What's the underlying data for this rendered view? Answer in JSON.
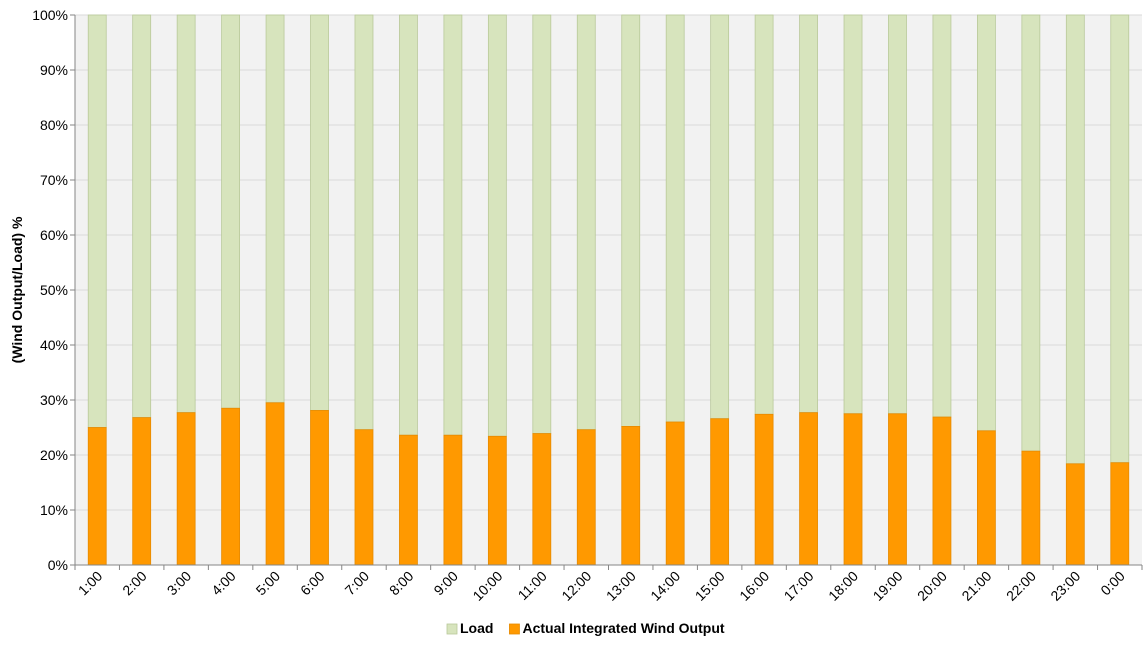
{
  "chart_data": {
    "type": "bar",
    "stacked": true,
    "normalized": true,
    "title": "",
    "xlabel": "",
    "ylabel": "(Wind Output/Load) %",
    "ylim": [
      0,
      100
    ],
    "yticks": [
      "0%",
      "10%",
      "20%",
      "30%",
      "40%",
      "50%",
      "60%",
      "70%",
      "80%",
      "90%",
      "100%"
    ],
    "grid": true,
    "legend_position": "bottom",
    "categories": [
      "1:00",
      "2:00",
      "3:00",
      "4:00",
      "5:00",
      "6:00",
      "7:00",
      "8:00",
      "9:00",
      "10:00",
      "11:00",
      "12:00",
      "13:00",
      "14:00",
      "15:00",
      "16:00",
      "17:00",
      "18:00",
      "19:00",
      "20:00",
      "21:00",
      "22:00",
      "23:00",
      "0:00"
    ],
    "series": [
      {
        "name": "Actual Integrated Wind Output",
        "color": "#ff9900",
        "values": [
          25.0,
          26.8,
          27.7,
          28.5,
          29.5,
          28.1,
          24.6,
          23.6,
          23.6,
          23.4,
          23.9,
          24.6,
          25.2,
          26.0,
          26.6,
          27.4,
          27.7,
          27.5,
          27.5,
          26.9,
          24.4,
          20.7,
          18.4,
          18.6
        ]
      },
      {
        "name": "Load",
        "color": "#d7e4bd",
        "values": [
          75.0,
          73.2,
          72.3,
          71.5,
          70.5,
          71.9,
          75.4,
          76.4,
          76.4,
          76.6,
          76.1,
          75.4,
          74.8,
          74.0,
          73.4,
          72.6,
          72.3,
          72.5,
          72.5,
          73.1,
          75.6,
          79.3,
          81.6,
          81.4
        ]
      }
    ],
    "legend_order": [
      "Load",
      "Actual Integrated Wind Output"
    ]
  }
}
